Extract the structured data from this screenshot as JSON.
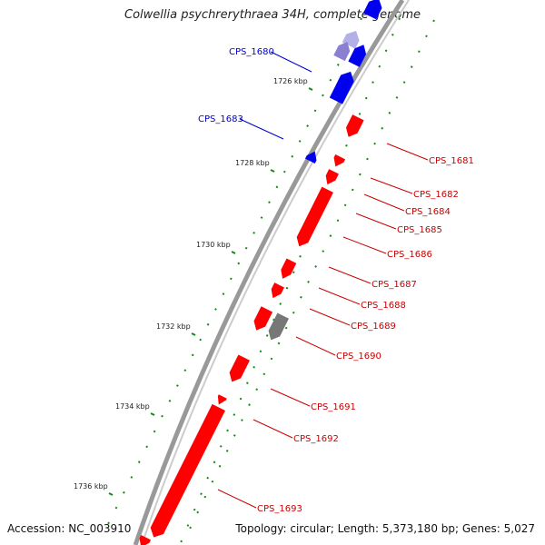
{
  "title": "Colwellia psychrerythraea 34H, complete genome",
  "footer": {
    "accession": "Accession: NC_003910",
    "topology": "Topology: circular; Length: 5,373,180 bp; Genes: 5,027"
  },
  "colors": {
    "forward_gene": "#0000ee",
    "forward_gene_faded": "#8a7fd0",
    "reverse_gene": "#ff0000",
    "other_feature": "#777777",
    "tick": "#138a13",
    "backbone": "#999999",
    "forward_label": "#0000cc",
    "reverse_label": "#cc0000"
  },
  "kbp_ticks": [
    "1726 kbp",
    "1728 kbp",
    "1730 kbp",
    "1732 kbp",
    "1734 kbp",
    "1736 kbp"
  ],
  "forward_labels": [
    "CPS_1680",
    "CPS_1683"
  ],
  "reverse_labels": [
    "CPS_1681",
    "CPS_1682",
    "CPS_1684",
    "CPS_1685",
    "CPS_1686",
    "CPS_1687",
    "CPS_1688",
    "CPS_1689",
    "CPS_1690",
    "CPS_1691",
    "CPS_1692",
    "CPS_1693"
  ]
}
